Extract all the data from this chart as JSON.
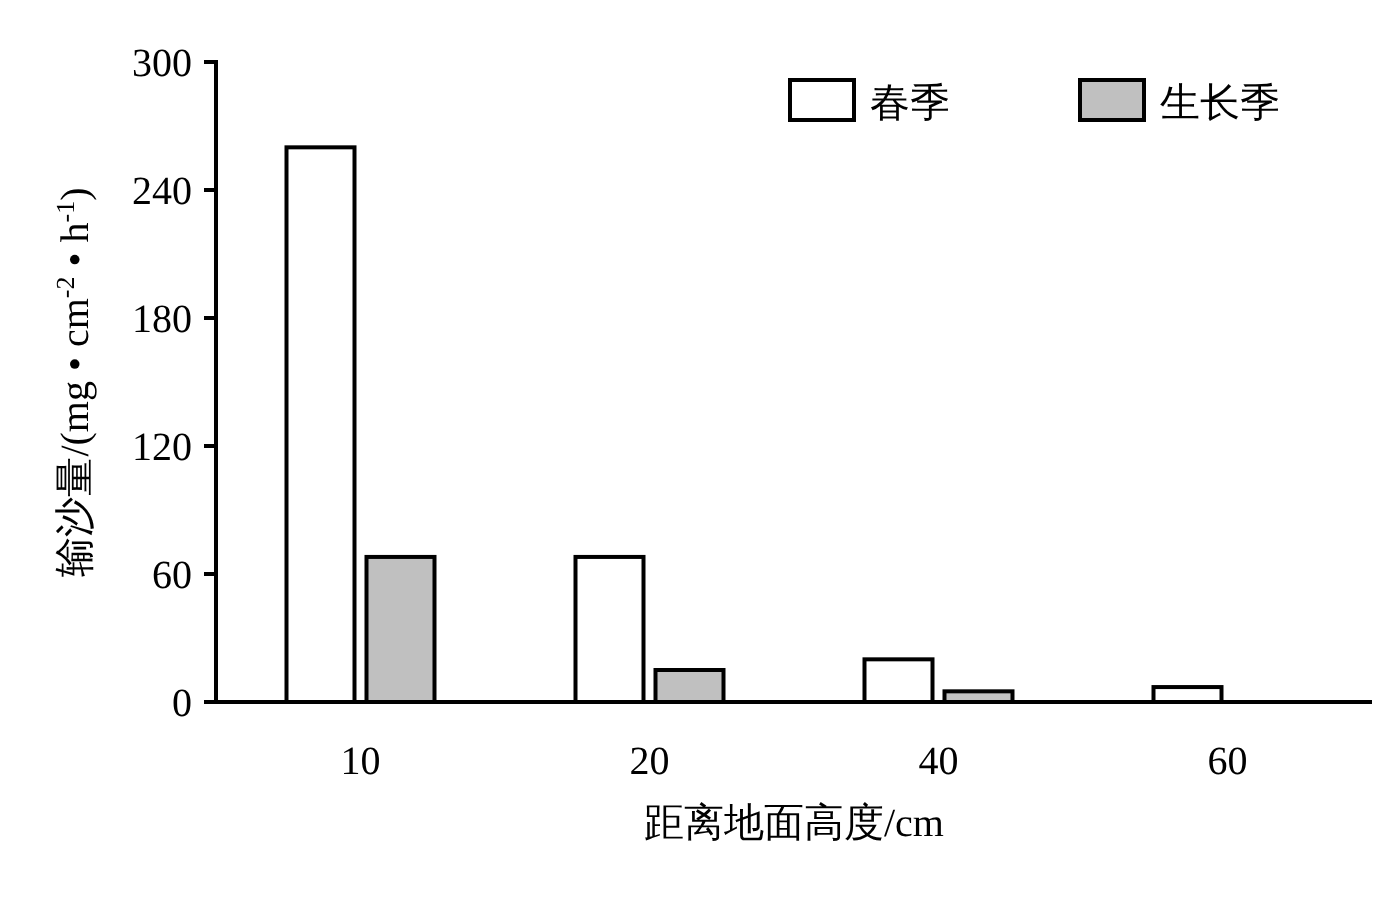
{
  "chart_data": {
    "type": "bar",
    "xlabel": "距离地面高度/cm",
    "ylabel": "输沙量/(mg • cm$^{-2}$ • h$^{-1}$)",
    "categories": [
      "10",
      "20",
      "40",
      "60"
    ],
    "series": [
      {
        "name": "春季",
        "color": "#ffffff",
        "values": [
          260,
          68,
          20,
          7
        ]
      },
      {
        "name": "生长季",
        "color": "#c0c0c0",
        "values": [
          68,
          15,
          5,
          null
        ]
      }
    ],
    "ylim": [
      0,
      300
    ],
    "yticks": [
      0,
      60,
      120,
      180,
      240,
      300
    ],
    "legend": "top right",
    "grid": false
  }
}
